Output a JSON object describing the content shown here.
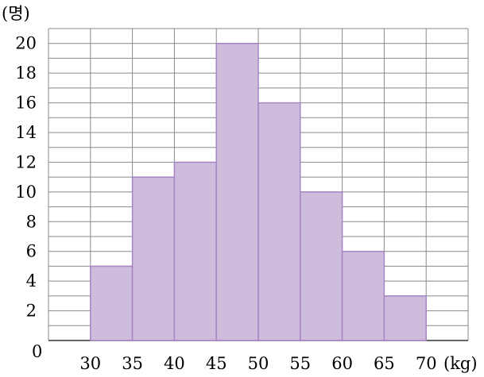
{
  "chart_data": {
    "type": "bar",
    "subtype": "histogram",
    "bins": [
      {
        "from": 30,
        "to": 35,
        "value": 5
      },
      {
        "from": 35,
        "to": 40,
        "value": 11
      },
      {
        "from": 40,
        "to": 45,
        "value": 12
      },
      {
        "from": 45,
        "to": 50,
        "value": 20
      },
      {
        "from": 50,
        "to": 55,
        "value": 16
      },
      {
        "from": 55,
        "to": 60,
        "value": 10
      },
      {
        "from": 60,
        "to": 65,
        "value": 6
      },
      {
        "from": 65,
        "to": 70,
        "value": 3
      }
    ],
    "x_ticks": [
      "30",
      "35",
      "40",
      "45",
      "50",
      "55",
      "60",
      "65",
      "70"
    ],
    "y_ticks": [
      "2",
      "4",
      "6",
      "8",
      "10",
      "12",
      "14",
      "16",
      "18",
      "20"
    ],
    "origin_label": "0",
    "xlabel": "(kg)",
    "ylabel": "(명)",
    "xlim": [
      25,
      75
    ],
    "ylim": [
      0,
      21
    ],
    "grid": true,
    "colors": {
      "bar_fill": "#cdbcdc",
      "bar_stroke": "#a885c4",
      "grid": "#888888"
    }
  }
}
